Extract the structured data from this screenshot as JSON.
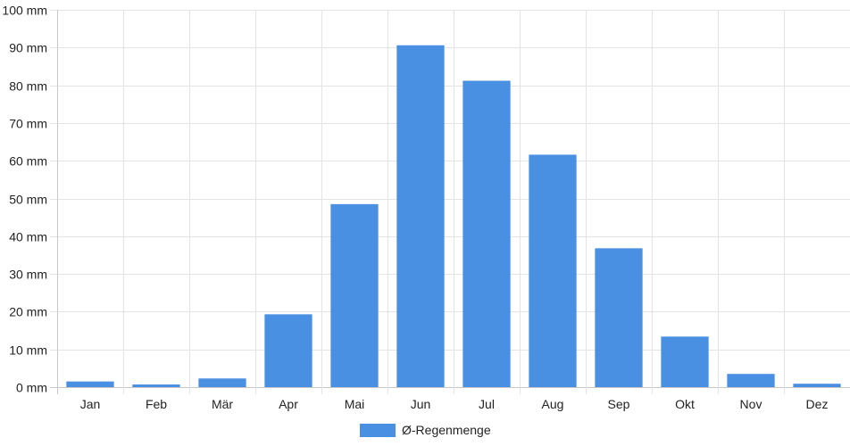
{
  "chart_data": {
    "type": "bar",
    "categories": [
      "Jan",
      "Feb",
      "Mär",
      "Apr",
      "Mai",
      "Jun",
      "Jul",
      "Aug",
      "Sep",
      "Okt",
      "Nov",
      "Dez"
    ],
    "series": [
      {
        "name": "Ø-Regenmenge",
        "color": "#4a90e2",
        "values": [
          1.5,
          0.7,
          2.3,
          19.3,
          48.5,
          90.6,
          81.2,
          61.6,
          36.8,
          13.4,
          3.5,
          0.9
        ]
      }
    ],
    "y_ticks": [
      "0 mm",
      "10 mm",
      "20 mm",
      "30 mm",
      "40 mm",
      "50 mm",
      "60 mm",
      "70 mm",
      "80 mm",
      "90 mm",
      "100 mm"
    ],
    "ylim": [
      0,
      100
    ],
    "y_unit": "mm",
    "grid": true,
    "legend_position": "bottom-center",
    "title": "",
    "xlabel": "",
    "ylabel": ""
  }
}
